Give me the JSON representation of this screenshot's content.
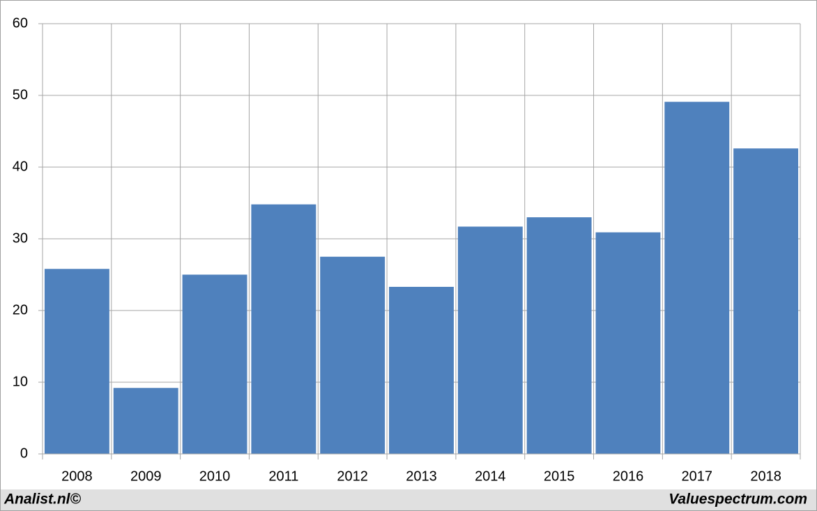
{
  "chart_data": {
    "type": "bar",
    "categories": [
      "2008",
      "2009",
      "2010",
      "2011",
      "2012",
      "2013",
      "2014",
      "2015",
      "2016",
      "2017",
      "2018"
    ],
    "values": [
      25.8,
      9.2,
      25,
      34.8,
      27.5,
      23.3,
      31.7,
      33,
      30.9,
      49.1,
      42.6
    ],
    "color": "#4f81bd",
    "ylim": [
      0,
      60
    ],
    "yticks": [
      0,
      10,
      20,
      30,
      40,
      50,
      60
    ],
    "grid": true
  },
  "footer": {
    "left": "Analist.nl©",
    "right": "Valuespectrum.com"
  }
}
